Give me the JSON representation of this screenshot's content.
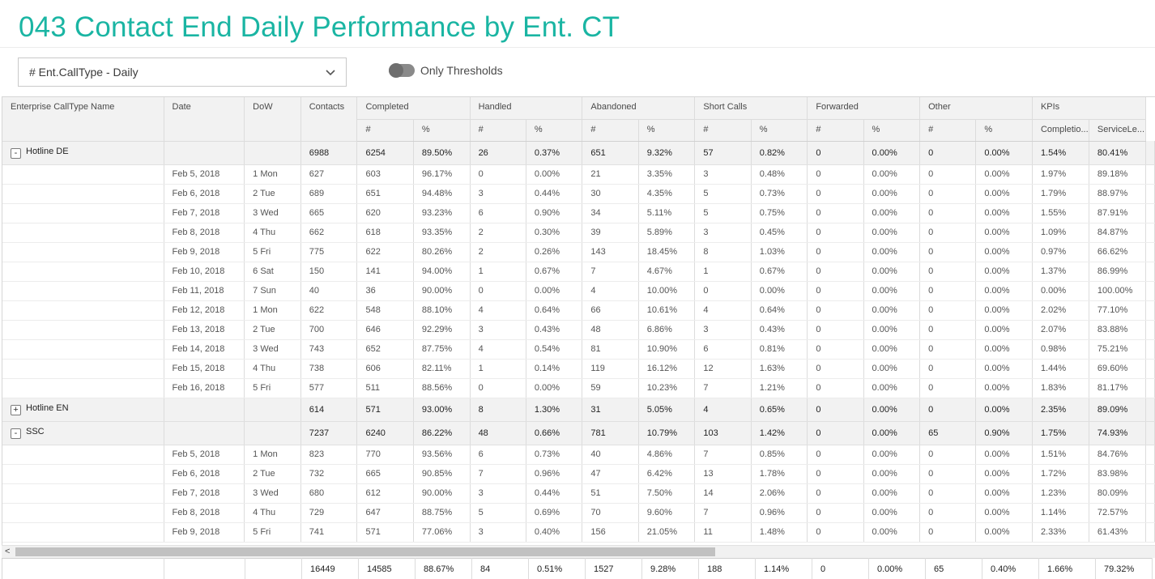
{
  "title": "043 Contact End Daily Performance by Ent. CT",
  "filter": {
    "selected": "# Ent.CallType - Daily",
    "toggle_label": "Only Thresholds"
  },
  "header": {
    "top": [
      "Enterprise CallType Name",
      "Date",
      "DoW",
      "Contacts",
      "Completed",
      "Handled",
      "Abandoned",
      "Short Calls",
      "Forwarded",
      "Other",
      "KPIs"
    ],
    "sub": [
      "#",
      "%",
      "#",
      "%",
      "#",
      "%",
      "#",
      "%",
      "#",
      "%",
      "#",
      "%",
      "Completio...",
      "ServiceLe..."
    ]
  },
  "rows": [
    {
      "type": "group",
      "expander": "-",
      "name": "Hotline DE",
      "date": "",
      "dow": "",
      "cells": [
        "6988",
        "6254",
        "89.50%",
        "26",
        "0.37%",
        "651",
        "9.32%",
        "57",
        "0.82%",
        "0",
        "0.00%",
        "0",
        "0.00%",
        "1.54%",
        "80.41%"
      ]
    },
    {
      "type": "data",
      "name": "",
      "date": "Feb 5, 2018",
      "dow": "1 Mon",
      "cells": [
        "627",
        "603",
        "96.17%",
        "0",
        "0.00%",
        "21",
        "3.35%",
        "3",
        "0.48%",
        "0",
        "0.00%",
        "0",
        "0.00%",
        "1.97%",
        "89.18%"
      ]
    },
    {
      "type": "data",
      "name": "",
      "date": "Feb 6, 2018",
      "dow": "2 Tue",
      "cells": [
        "689",
        "651",
        "94.48%",
        "3",
        "0.44%",
        "30",
        "4.35%",
        "5",
        "0.73%",
        "0",
        "0.00%",
        "0",
        "0.00%",
        "1.79%",
        "88.97%"
      ]
    },
    {
      "type": "data",
      "name": "",
      "date": "Feb 7, 2018",
      "dow": "3 Wed",
      "cells": [
        "665",
        "620",
        "93.23%",
        "6",
        "0.90%",
        "34",
        "5.11%",
        "5",
        "0.75%",
        "0",
        "0.00%",
        "0",
        "0.00%",
        "1.55%",
        "87.91%"
      ]
    },
    {
      "type": "data",
      "name": "",
      "date": "Feb 8, 2018",
      "dow": "4 Thu",
      "cells": [
        "662",
        "618",
        "93.35%",
        "2",
        "0.30%",
        "39",
        "5.89%",
        "3",
        "0.45%",
        "0",
        "0.00%",
        "0",
        "0.00%",
        "1.09%",
        "84.87%"
      ]
    },
    {
      "type": "data",
      "name": "",
      "date": "Feb 9, 2018",
      "dow": "5 Fri",
      "cells": [
        "775",
        "622",
        "80.26%",
        "2",
        "0.26%",
        "143",
        "18.45%",
        "8",
        "1.03%",
        "0",
        "0.00%",
        "0",
        "0.00%",
        "0.97%",
        "66.62%"
      ]
    },
    {
      "type": "data",
      "name": "",
      "date": "Feb 10, 2018",
      "dow": "6 Sat",
      "cells": [
        "150",
        "141",
        "94.00%",
        "1",
        "0.67%",
        "7",
        "4.67%",
        "1",
        "0.67%",
        "0",
        "0.00%",
        "0",
        "0.00%",
        "1.37%",
        "86.99%"
      ]
    },
    {
      "type": "data",
      "name": "",
      "date": "Feb 11, 2018",
      "dow": "7 Sun",
      "cells": [
        "40",
        "36",
        "90.00%",
        "0",
        "0.00%",
        "4",
        "10.00%",
        "0",
        "0.00%",
        "0",
        "0.00%",
        "0",
        "0.00%",
        "0.00%",
        "100.00%"
      ]
    },
    {
      "type": "data",
      "name": "",
      "date": "Feb 12, 2018",
      "dow": "1 Mon",
      "cells": [
        "622",
        "548",
        "88.10%",
        "4",
        "0.64%",
        "66",
        "10.61%",
        "4",
        "0.64%",
        "0",
        "0.00%",
        "0",
        "0.00%",
        "2.02%",
        "77.10%"
      ]
    },
    {
      "type": "data",
      "name": "",
      "date": "Feb 13, 2018",
      "dow": "2 Tue",
      "cells": [
        "700",
        "646",
        "92.29%",
        "3",
        "0.43%",
        "48",
        "6.86%",
        "3",
        "0.43%",
        "0",
        "0.00%",
        "0",
        "0.00%",
        "2.07%",
        "83.88%"
      ]
    },
    {
      "type": "data",
      "name": "",
      "date": "Feb 14, 2018",
      "dow": "3 Wed",
      "cells": [
        "743",
        "652",
        "87.75%",
        "4",
        "0.54%",
        "81",
        "10.90%",
        "6",
        "0.81%",
        "0",
        "0.00%",
        "0",
        "0.00%",
        "0.98%",
        "75.21%"
      ]
    },
    {
      "type": "data",
      "name": "",
      "date": "Feb 15, 2018",
      "dow": "4 Thu",
      "cells": [
        "738",
        "606",
        "82.11%",
        "1",
        "0.14%",
        "119",
        "16.12%",
        "12",
        "1.63%",
        "0",
        "0.00%",
        "0",
        "0.00%",
        "1.44%",
        "69.60%"
      ]
    },
    {
      "type": "data",
      "name": "",
      "date": "Feb 16, 2018",
      "dow": "5 Fri",
      "cells": [
        "577",
        "511",
        "88.56%",
        "0",
        "0.00%",
        "59",
        "10.23%",
        "7",
        "1.21%",
        "0",
        "0.00%",
        "0",
        "0.00%",
        "1.83%",
        "81.17%"
      ]
    },
    {
      "type": "group",
      "expander": "+",
      "name": "Hotline EN",
      "date": "",
      "dow": "",
      "cells": [
        "614",
        "571",
        "93.00%",
        "8",
        "1.30%",
        "31",
        "5.05%",
        "4",
        "0.65%",
        "0",
        "0.00%",
        "0",
        "0.00%",
        "2.35%",
        "89.09%"
      ]
    },
    {
      "type": "group",
      "expander": "-",
      "name": "SSC",
      "date": "",
      "dow": "",
      "cells": [
        "7237",
        "6240",
        "86.22%",
        "48",
        "0.66%",
        "781",
        "10.79%",
        "103",
        "1.42%",
        "0",
        "0.00%",
        "65",
        "0.90%",
        "1.75%",
        "74.93%"
      ]
    },
    {
      "type": "data",
      "name": "",
      "date": "Feb 5, 2018",
      "dow": "1 Mon",
      "cells": [
        "823",
        "770",
        "93.56%",
        "6",
        "0.73%",
        "40",
        "4.86%",
        "7",
        "0.85%",
        "0",
        "0.00%",
        "0",
        "0.00%",
        "1.51%",
        "84.76%"
      ]
    },
    {
      "type": "data",
      "name": "",
      "date": "Feb 6, 2018",
      "dow": "2 Tue",
      "cells": [
        "732",
        "665",
        "90.85%",
        "7",
        "0.96%",
        "47",
        "6.42%",
        "13",
        "1.78%",
        "0",
        "0.00%",
        "0",
        "0.00%",
        "1.72%",
        "83.98%"
      ]
    },
    {
      "type": "data",
      "name": "",
      "date": "Feb 7, 2018",
      "dow": "3 Wed",
      "cells": [
        "680",
        "612",
        "90.00%",
        "3",
        "0.44%",
        "51",
        "7.50%",
        "14",
        "2.06%",
        "0",
        "0.00%",
        "0",
        "0.00%",
        "1.23%",
        "80.09%"
      ]
    },
    {
      "type": "data",
      "name": "",
      "date": "Feb 8, 2018",
      "dow": "4 Thu",
      "cells": [
        "729",
        "647",
        "88.75%",
        "5",
        "0.69%",
        "70",
        "9.60%",
        "7",
        "0.96%",
        "0",
        "0.00%",
        "0",
        "0.00%",
        "1.14%",
        "72.57%"
      ]
    },
    {
      "type": "data",
      "name": "",
      "date": "Feb 9, 2018",
      "dow": "5 Fri",
      "cells": [
        "741",
        "571",
        "77.06%",
        "3",
        "0.40%",
        "156",
        "21.05%",
        "11",
        "1.48%",
        "0",
        "0.00%",
        "0",
        "0.00%",
        "2.33%",
        "61.43%"
      ]
    }
  ],
  "totals": [
    "16449",
    "14585",
    "88.67%",
    "84",
    "0.51%",
    "1527",
    "9.28%",
    "188",
    "1.14%",
    "0",
    "0.00%",
    "65",
    "0.40%",
    "1.66%",
    "79.32%"
  ],
  "scroll_left_arrow": "<"
}
